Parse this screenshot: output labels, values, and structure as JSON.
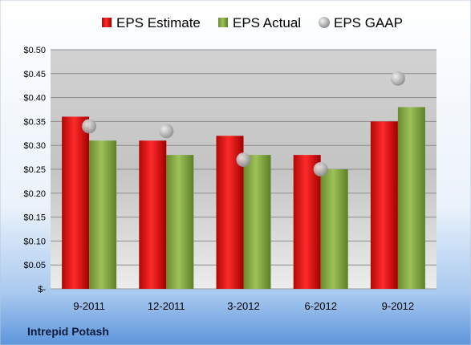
{
  "chart_data": {
    "type": "bar",
    "categories": [
      "9-2011",
      "12-2011",
      "3-2012",
      "6-2012",
      "9-2012"
    ],
    "series": [
      {
        "name": "EPS Estimate",
        "kind": "bar",
        "color": "#e02020",
        "values": [
          0.36,
          0.31,
          0.32,
          0.28,
          0.35
        ]
      },
      {
        "name": "EPS Actual",
        "kind": "bar",
        "color": "#8db04a",
        "values": [
          0.31,
          0.28,
          0.28,
          0.25,
          0.38
        ]
      },
      {
        "name": "EPS GAAP",
        "kind": "scatter",
        "color": "#b8b8b8",
        "values": [
          0.34,
          0.33,
          0.27,
          0.25,
          0.44
        ]
      }
    ],
    "ylim": [
      0,
      0.5
    ],
    "yticks": [
      0,
      0.05,
      0.1,
      0.15,
      0.2,
      0.25,
      0.3,
      0.35,
      0.4,
      0.45,
      0.5
    ],
    "ytick_labels": [
      "$-",
      "$0.05",
      "$0.10",
      "$0.15",
      "$0.20",
      "$0.25",
      "$0.30",
      "$0.35",
      "$0.40",
      "$0.45",
      "$0.50"
    ],
    "grid": true,
    "legend_position": "top"
  },
  "footer": {
    "company": "Intrepid Potash"
  }
}
